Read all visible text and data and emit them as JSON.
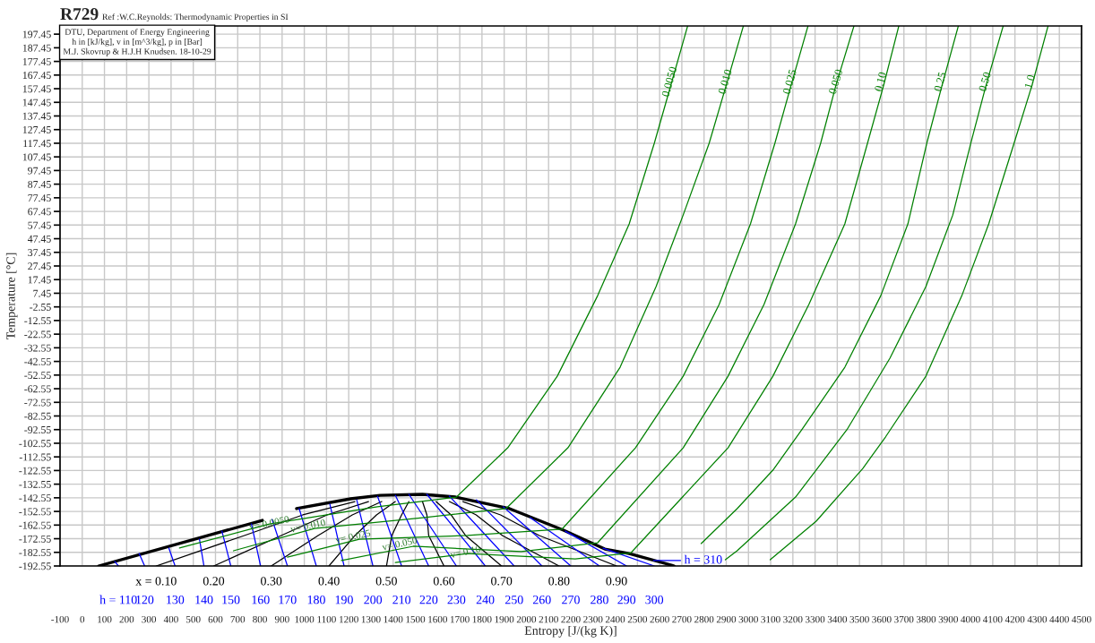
{
  "chart_data": {
    "type": "line",
    "title": "R729",
    "subtitle": "Ref :W.C.Reynolds: Thermodynamic Properties in SI",
    "xlabel": "Entropy [J/(kg K)]",
    "ylabel": "Temperature [°C]",
    "annotations": [
      "DTU, Department of Energy Engineering\nh in [kJ/kg], v in [m^3/kg], p in [Bar]\nM.J. Skovrup & H.J.H Knudsen. 18-10-29",
      {
        "text": "v= 0.0050",
        "x": 843,
        "y": -161.7
      },
      {
        "text": "v= 0.010",
        "x": 1017,
        "y": -163.7
      },
      {
        "text": "v= 0.025",
        "x": 1220,
        "y": -171.5
      },
      {
        "text": "v= 0.050",
        "x": 1430,
        "y": -176.8
      },
      {
        "text": "v= 0.10",
        "x": 1726,
        "y": -182.7
      }
    ],
    "xlim": [
      -100,
      4500
    ],
    "ylim": [
      -192.55,
      203.45
    ],
    "xticks": [
      -100,
      0,
      100,
      200,
      300,
      400,
      500,
      600,
      700,
      800,
      900,
      1000,
      1100,
      1200,
      1300,
      1400,
      1500,
      1600,
      1700,
      1800,
      1900,
      2000,
      2100,
      2200,
      2300,
      2400,
      2500,
      2600,
      2700,
      2800,
      2900,
      3000,
      3100,
      3200,
      3300,
      3400,
      3500,
      3600,
      3700,
      3800,
      3900,
      4000,
      4100,
      4200,
      4300,
      4400,
      4500
    ],
    "yticks": [
      -192.55,
      -182.55,
      -172.55,
      -162.55,
      -152.55,
      -142.55,
      -132.55,
      -122.55,
      -112.55,
      -102.55,
      -92.55,
      -82.55,
      -72.55,
      -62.55,
      -52.55,
      -42.55,
      -32.55,
      -22.55,
      -12.55,
      -2.55,
      7.45,
      17.45,
      27.45,
      37.45,
      47.45,
      57.45,
      67.45,
      77.45,
      87.45,
      97.45,
      107.45,
      117.45,
      127.45,
      137.45,
      147.45,
      157.45,
      167.45,
      177.45,
      187.45,
      197.45
    ],
    "grid": true,
    "legend": false,
    "marker": "none",
    "line_style": "solid",
    "series": [
      {
        "color": "#000000",
        "x": [
          74,
          811,
          888,
          965,
          1208,
          1341,
          1532,
          1681,
          1924,
          2167,
          2353,
          2463,
          2653,
          2665
        ],
        "values": [
          -192.55,
          -159.1,
          null,
          -150.5,
          -143.3,
          -140.7,
          -140.0,
          -142.0,
          -150.5,
          -166.3,
          -180.1,
          -183.4,
          -191.9,
          -192.55
        ]
      },
      {
        "name": "x = 0.10",
        "color": "#000000",
        "x": [
          333,
          730,
          993,
          1228
        ],
        "values": [
          -192.55,
          -170.2,
          -155.1,
          -145.3
        ]
      },
      {
        "name": "0.20",
        "color": "#000000",
        "x": [
          592,
          896,
          1102,
          1289
        ],
        "values": [
          -192.55,
          -170.2,
          -155.1,
          -145.3
        ]
      },
      {
        "name": "0.30",
        "color": "#000000",
        "x": [
          851,
          1062,
          1216,
          1349
        ],
        "values": [
          -192.55,
          -170.2,
          -155.1,
          -145.3
        ]
      },
      {
        "name": "0.40",
        "color": "#000000",
        "x": [
          1111,
          1228,
          1325,
          1410
        ],
        "values": [
          -192.55,
          -170.2,
          -155.1,
          -145.3
        ]
      },
      {
        "name": "0.50",
        "color": "#000000",
        "x": [
          1370,
          1394,
          1438,
          1471
        ],
        "values": [
          -192.55,
          -170.2,
          -155.1,
          -145.3
        ]
      },
      {
        "name": "0.60",
        "color": "#000000",
        "x": [
          1629,
          1560,
          1552,
          1532
        ],
        "values": [
          -192.55,
          -170.2,
          -155.1,
          -145.3
        ]
      },
      {
        "name": "0.70",
        "color": "#000000",
        "x": [
          1888,
          1726,
          1661,
          1593
        ],
        "values": [
          -192.55,
          -170.2,
          -155.1,
          -145.3
        ]
      },
      {
        "name": "0.80",
        "color": "#000000",
        "x": [
          2147,
          1892,
          1774,
          1653
        ],
        "values": [
          -192.55,
          -170.2,
          -155.1,
          -145.3
        ]
      },
      {
        "name": "0.90",
        "color": "#000000",
        "x": [
          2406,
          2058,
          1884,
          1714
        ],
        "values": [
          -192.55,
          -170.2,
          -155.1,
          -145.3
        ]
      },
      {
        "name": "h = 110",
        "color": "#0000ff",
        "x": [
          147,
          163
        ],
        "values": [
          -189.3,
          -192.55
        ]
      },
      {
        "name": "120",
        "color": "#0000ff",
        "x": [
          256,
          281
        ],
        "values": [
          -183.4,
          -192.55
        ]
      },
      {
        "name": "130",
        "color": "#0000ff",
        "x": [
          390,
          418
        ],
        "values": [
          -179.4,
          -192.55
        ]
      },
      {
        "name": "140",
        "color": "#0000ff",
        "x": [
          528,
          548
        ],
        "values": [
          -172.9,
          -192.55
        ]
      },
      {
        "name": "150",
        "color": "#0000ff",
        "x": [
          629,
          669
        ],
        "values": [
          -167.0,
          -192.55
        ]
      },
      {
        "name": "160",
        "color": "#0000ff",
        "x": [
          762,
          803
        ],
        "values": [
          -161.7,
          -192.55
        ]
      },
      {
        "name": "170",
        "color": "#0000ff",
        "x": [
          855,
          924
        ],
        "values": [
          -158.4,
          -192.55
        ]
      },
      {
        "name": "180",
        "color": "#0000ff",
        "x": [
          977,
          1054
        ],
        "values": [
          -150.5,
          -192.55
        ]
      },
      {
        "name": "190",
        "color": "#0000ff",
        "x": [
          1115,
          1179
        ],
        "values": [
          -147.2,
          -192.55
        ]
      },
      {
        "name": "200",
        "color": "#0000ff",
        "x": [
          1236,
          1309
        ],
        "values": [
          -144.0,
          -192.55
        ]
      },
      {
        "name": "210",
        "color": "#0000ff",
        "x": [
          1330,
          1438
        ],
        "values": [
          -141.5,
          -192.55
        ]
      },
      {
        "name": "220",
        "color": "#0000ff",
        "x": [
          1410,
          1560
        ],
        "values": [
          -140.7,
          -192.55
        ]
      },
      {
        "name": "230",
        "color": "#0000ff",
        "x": [
          1471,
          1685
        ],
        "values": [
          -140.0,
          -192.55
        ]
      },
      {
        "name": "240",
        "color": "#0000ff",
        "x": [
          1552,
          1815
        ],
        "values": [
          -140.0,
          -192.55
        ]
      },
      {
        "name": "250",
        "color": "#0000ff",
        "x": [
          1653,
          1945
        ],
        "values": [
          -141.3,
          -192.55
        ]
      },
      {
        "name": "260",
        "color": "#0000ff",
        "x": [
          1775,
          2070
        ],
        "values": [
          -144.0,
          -192.55
        ]
      },
      {
        "name": "270",
        "color": "#0000ff",
        "x": [
          1896,
          2200
        ],
        "values": [
          -149.2,
          -192.55
        ]
      },
      {
        "name": "280",
        "color": "#0000ff",
        "x": [
          2017,
          2329
        ],
        "values": [
          -157.1,
          -192.55
        ]
      },
      {
        "name": "290",
        "color": "#0000ff",
        "x": [
          2175,
          2451
        ],
        "values": [
          -167.0,
          -192.55
        ]
      },
      {
        "name": "300",
        "color": "#0000ff",
        "x": [
          2345,
          2576
        ],
        "values": [
          -179.5,
          -192.55
        ]
      },
      {
        "name": "h = 310",
        "color": "#0000ff",
        "x": [
          2572,
          2694
        ],
        "values": [
          -188.6,
          -188.6
        ]
      },
      {
        "name": "0.0050",
        "color": "#008000",
        "x": [
          438,
          843,
          1329,
          1685,
          1916,
          2139,
          2321,
          2463,
          2576,
          2645,
          2726
        ],
        "values": [
          -179.4,
          -161.7,
          -149.2,
          -142.0,
          -105.9,
          -53.4,
          5.7,
          58.3,
          117.4,
          156.8,
          203.4
        ]
      },
      {
        "name": "0.010",
        "color": "#008000",
        "x": [
          681,
          1046,
          1532,
          1908,
          2187,
          2422,
          2584,
          2706,
          2823,
          2900,
          2977
        ],
        "values": [
          -181.4,
          -165.0,
          -157.1,
          -150.5,
          -105.9,
          -46.8,
          12.3,
          64.8,
          117.4,
          160.0,
          203.4
        ]
      },
      {
        "name": "0.025",
        "color": "#008000",
        "x": [
          924,
          1248,
          1734,
          2160,
          2491,
          2706,
          2868,
          3009,
          3119,
          3192,
          3268
        ],
        "values": [
          -186.0,
          -172.9,
          -170.2,
          -165.6,
          -105.9,
          -53.4,
          -0.8,
          58.3,
          117.4,
          160.0,
          203.4
        ]
      },
      {
        "name": "0.050",
        "color": "#008000",
        "x": [
          1167,
          1491,
          1977,
          2321,
          2706,
          2908,
          3070,
          3212,
          3325,
          3394,
          3475
        ],
        "values": [
          -188.6,
          -178.1,
          -182.0,
          -175.5,
          -105.9,
          -53.4,
          -0.8,
          58.3,
          117.4,
          160.0,
          203.4
        ]
      },
      {
        "name": "0.10",
        "color": "#008000",
        "x": [
          1410,
          1734,
          2220,
          2470,
          2908,
          3110,
          3272,
          3434,
          3536,
          3609,
          3677
        ],
        "values": [
          -190.0,
          -183.4,
          -187.3,
          -183.0,
          -105.9,
          -53.4,
          -0.8,
          58.3,
          117.4,
          160.0,
          203.4
        ]
      },
      {
        "name": "0.25",
        "color": "#008000",
        "x": [
          2787,
          2949,
          3110,
          3240,
          3434,
          3596,
          3718,
          3803,
          3872,
          3945
        ],
        "values": [
          -176.1,
          -150.5,
          -122.3,
          -92.7,
          -46.8,
          5.7,
          58.3,
          117.4,
          160.0,
          203.4
        ]
      },
      {
        "name": "0.50",
        "color": "#008000",
        "x": [
          2896,
          2949,
          3212,
          3443,
          3637,
          3799,
          3920,
          4001,
          4070,
          4147
        ],
        "values": [
          -188.0,
          -181.4,
          -142.0,
          -92.7,
          -40.2,
          12.3,
          64.8,
          117.4,
          160.0,
          203.4
        ]
      },
      {
        "name": "1.0",
        "color": "#008000",
        "x": [
          3098,
          3305,
          3515,
          3617,
          3799,
          3961,
          4082,
          4196,
          4277,
          4349
        ],
        "values": [
          -188.0,
          -159.7,
          -121.0,
          -98.0,
          -53.4,
          5.7,
          58.3,
          117.4,
          160.0,
          203.4
        ]
      }
    ]
  }
}
